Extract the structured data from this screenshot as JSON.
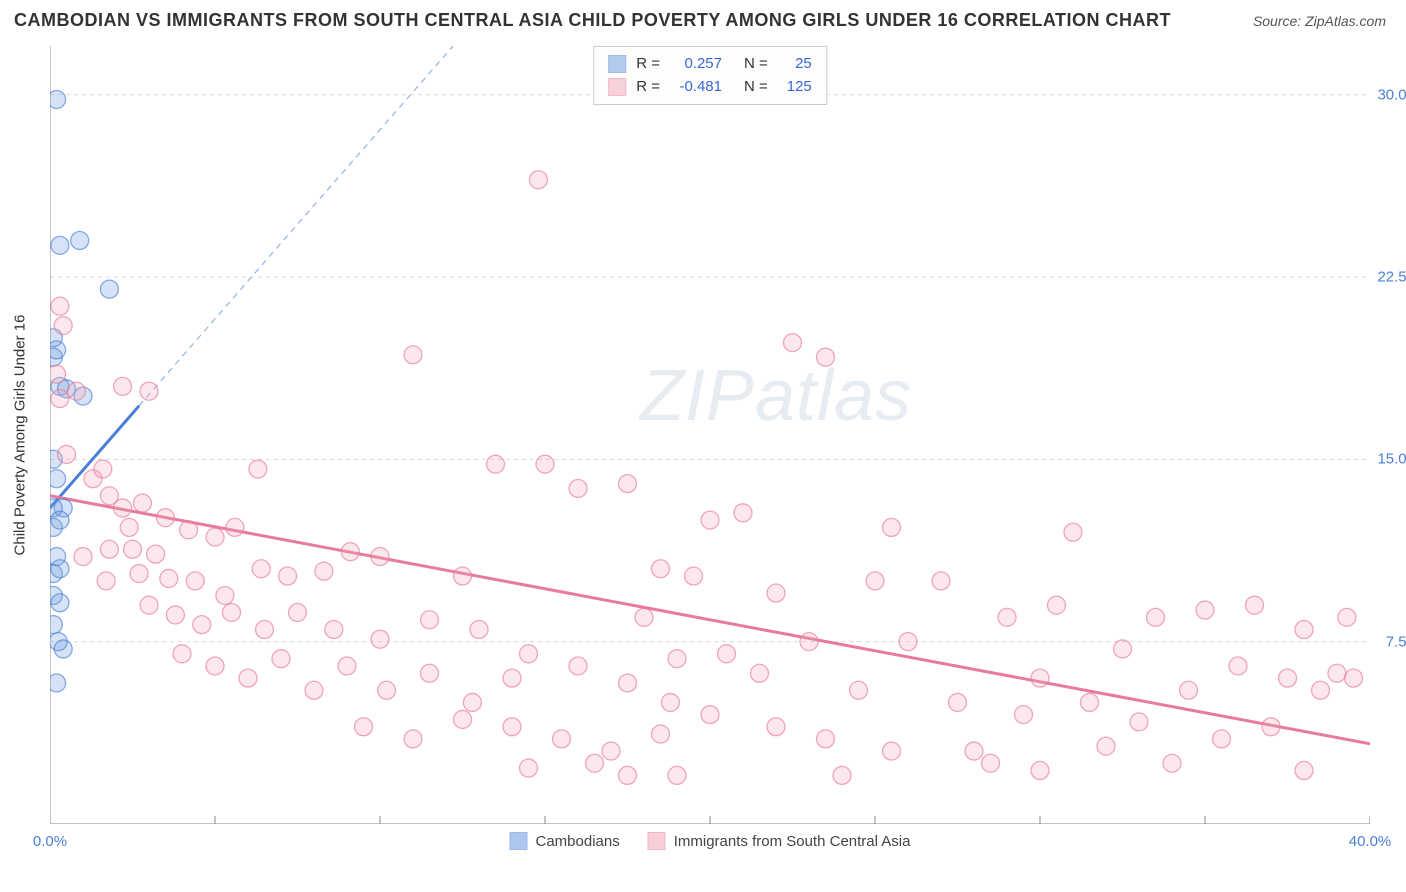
{
  "header": {
    "title": "CAMBODIAN VS IMMIGRANTS FROM SOUTH CENTRAL ASIA CHILD POVERTY AMONG GIRLS UNDER 16 CORRELATION CHART",
    "source": "Source: ZipAtlas.com"
  },
  "watermark": {
    "bold": "ZIP",
    "light": "atlas"
  },
  "chart": {
    "type": "scatter",
    "ylabel": "Child Poverty Among Girls Under 16",
    "xlim": [
      0,
      40
    ],
    "ylim": [
      0,
      32
    ],
    "xtick_values": [
      0,
      40
    ],
    "xtick_labels": [
      "0.0%",
      "40.0%"
    ],
    "ytick_values": [
      7.5,
      15.0,
      22.5,
      30.0
    ],
    "ytick_labels": [
      "7.5%",
      "15.0%",
      "22.5%",
      "30.0%"
    ],
    "grid_color": "#d9d9d9",
    "axis_color": "#888",
    "background_color": "#ffffff",
    "marker_radius": 9,
    "marker_fill_opacity": 0.28,
    "marker_stroke_opacity": 0.65,
    "marker_stroke_width": 1.3,
    "series": [
      {
        "key": "cambodians",
        "label": "Cambodians",
        "color": "#6b9ae0",
        "stroke": "#4a7fd8",
        "R": "0.257",
        "N": "25",
        "trend": {
          "x1": 0,
          "y1": 13.0,
          "x2": 2.7,
          "y2": 17.2,
          "dash_extend_x": 13.5,
          "dash_extend_y": 34.0
        },
        "points": [
          [
            0.2,
            29.8
          ],
          [
            0.3,
            23.8
          ],
          [
            0.9,
            24.0
          ],
          [
            1.8,
            22.0
          ],
          [
            0.1,
            20.0
          ],
          [
            0.1,
            19.2
          ],
          [
            0.3,
            18.0
          ],
          [
            0.5,
            17.9
          ],
          [
            1.0,
            17.6
          ],
          [
            0.1,
            15.0
          ],
          [
            0.2,
            14.2
          ],
          [
            0.4,
            13.0
          ],
          [
            0.1,
            13.0
          ],
          [
            0.1,
            12.2
          ],
          [
            0.3,
            12.5
          ],
          [
            0.2,
            11.0
          ],
          [
            0.1,
            10.3
          ],
          [
            0.3,
            10.5
          ],
          [
            0.1,
            9.4
          ],
          [
            0.3,
            9.1
          ],
          [
            0.1,
            8.2
          ],
          [
            0.25,
            7.5
          ],
          [
            0.4,
            7.2
          ],
          [
            0.2,
            5.8
          ],
          [
            0.2,
            19.5
          ]
        ]
      },
      {
        "key": "sca",
        "label": "Immigrants from South Central Asia",
        "color": "#f2a8bb",
        "stroke": "#e87a9c",
        "R": "-0.481",
        "N": "125",
        "trend": {
          "x1": 0,
          "y1": 13.5,
          "x2": 40,
          "y2": 3.3
        },
        "points": [
          [
            0.3,
            21.3
          ],
          [
            0.4,
            20.5
          ],
          [
            0.2,
            18.5
          ],
          [
            0.3,
            17.5
          ],
          [
            0.8,
            17.8
          ],
          [
            2.2,
            18.0
          ],
          [
            3.0,
            17.8
          ],
          [
            0.5,
            15.2
          ],
          [
            1.3,
            14.2
          ],
          [
            1.6,
            14.6
          ],
          [
            1.8,
            13.5
          ],
          [
            2.2,
            13.0
          ],
          [
            2.8,
            13.2
          ],
          [
            2.4,
            12.2
          ],
          [
            3.5,
            12.6
          ],
          [
            1.0,
            11.0
          ],
          [
            1.8,
            11.3
          ],
          [
            2.5,
            11.3
          ],
          [
            3.2,
            11.1
          ],
          [
            4.2,
            12.1
          ],
          [
            5.0,
            11.8
          ],
          [
            5.6,
            12.2
          ],
          [
            6.3,
            14.6
          ],
          [
            11.0,
            19.3
          ],
          [
            14.8,
            26.5
          ],
          [
            1.7,
            10.0
          ],
          [
            2.7,
            10.3
          ],
          [
            3.6,
            10.1
          ],
          [
            4.4,
            10.0
          ],
          [
            5.3,
            9.4
          ],
          [
            6.4,
            10.5
          ],
          [
            7.2,
            10.2
          ],
          [
            8.3,
            10.4
          ],
          [
            9.1,
            11.2
          ],
          [
            10.0,
            11.0
          ],
          [
            3.0,
            9.0
          ],
          [
            3.8,
            8.6
          ],
          [
            4.6,
            8.2
          ],
          [
            5.5,
            8.7
          ],
          [
            6.5,
            8.0
          ],
          [
            7.5,
            8.7
          ],
          [
            8.6,
            8.0
          ],
          [
            10.0,
            7.6
          ],
          [
            11.5,
            8.4
          ],
          [
            12.5,
            10.2
          ],
          [
            4.0,
            7.0
          ],
          [
            5.0,
            6.5
          ],
          [
            6.0,
            6.0
          ],
          [
            7.0,
            6.8
          ],
          [
            8.0,
            5.5
          ],
          [
            9.0,
            6.5
          ],
          [
            10.2,
            5.5
          ],
          [
            11.5,
            6.2
          ],
          [
            12.8,
            5.0
          ],
          [
            14.0,
            6.0
          ],
          [
            9.5,
            4.0
          ],
          [
            11.0,
            3.5
          ],
          [
            12.5,
            4.3
          ],
          [
            14.0,
            4.0
          ],
          [
            15.5,
            3.5
          ],
          [
            13.0,
            8.0
          ],
          [
            14.5,
            7.0
          ],
          [
            16.0,
            6.5
          ],
          [
            17.5,
            5.8
          ],
          [
            18.8,
            5.0
          ],
          [
            15.0,
            14.8
          ],
          [
            16.0,
            13.8
          ],
          [
            17.5,
            14.0
          ],
          [
            18.5,
            10.5
          ],
          [
            19.5,
            10.2
          ],
          [
            17.0,
            3.0
          ],
          [
            17.5,
            2.0
          ],
          [
            18.5,
            3.7
          ],
          [
            19.0,
            2.0
          ],
          [
            20.0,
            4.5
          ],
          [
            20.0,
            12.5
          ],
          [
            21.0,
            12.8
          ],
          [
            22.0,
            9.5
          ],
          [
            22.5,
            19.8
          ],
          [
            23.5,
            19.2
          ],
          [
            20.5,
            7.0
          ],
          [
            21.5,
            6.2
          ],
          [
            22.0,
            4.0
          ],
          [
            23.0,
            7.5
          ],
          [
            23.5,
            3.5
          ],
          [
            24.0,
            2.0
          ],
          [
            24.5,
            5.5
          ],
          [
            25.0,
            10.0
          ],
          [
            25.5,
            3.0
          ],
          [
            26.0,
            7.5
          ],
          [
            25.5,
            12.2
          ],
          [
            27.0,
            10.0
          ],
          [
            27.5,
            5.0
          ],
          [
            28.0,
            3.0
          ],
          [
            29.0,
            8.5
          ],
          [
            28.5,
            2.5
          ],
          [
            29.5,
            4.5
          ],
          [
            30.0,
            6.0
          ],
          [
            30.5,
            9.0
          ],
          [
            31.0,
            12.0
          ],
          [
            30.0,
            2.2
          ],
          [
            31.5,
            5.0
          ],
          [
            32.0,
            3.2
          ],
          [
            32.5,
            7.2
          ],
          [
            33.0,
            4.2
          ],
          [
            33.5,
            8.5
          ],
          [
            34.0,
            2.5
          ],
          [
            34.5,
            5.5
          ],
          [
            35.0,
            8.8
          ],
          [
            35.5,
            3.5
          ],
          [
            36.0,
            6.5
          ],
          [
            36.5,
            9.0
          ],
          [
            37.0,
            4.0
          ],
          [
            37.5,
            6.0
          ],
          [
            38.0,
            8.0
          ],
          [
            38.0,
            2.2
          ],
          [
            38.5,
            5.5
          ],
          [
            39.0,
            6.2
          ],
          [
            39.3,
            8.5
          ],
          [
            39.5,
            6.0
          ],
          [
            18.0,
            8.5
          ],
          [
            19.0,
            6.8
          ],
          [
            16.5,
            2.5
          ],
          [
            14.5,
            2.3
          ],
          [
            13.5,
            14.8
          ]
        ]
      }
    ]
  },
  "legend": {
    "items": [
      {
        "series": "cambodians"
      },
      {
        "series": "sca"
      }
    ]
  }
}
